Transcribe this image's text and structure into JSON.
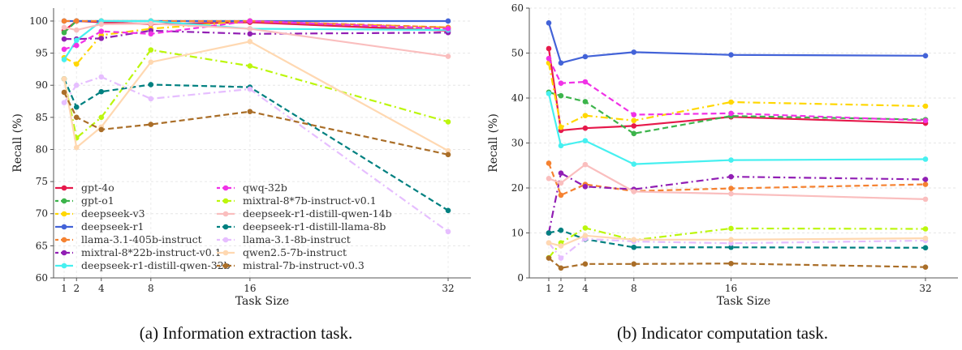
{
  "chart_data": [
    {
      "type": "line",
      "caption": "(a) Information extraction task.",
      "xlabel": "Task Size",
      "ylabel": "Recall (%)",
      "x": [
        1,
        2,
        4,
        8,
        16,
        32
      ],
      "xticks": [
        "1",
        "2",
        "4",
        "8",
        "16",
        "32"
      ],
      "ylim": [
        60,
        100.5
      ],
      "yticks": [
        60,
        65,
        70,
        75,
        80,
        85,
        90,
        95,
        100
      ],
      "grid": true,
      "legend_placement": "lower-left",
      "series": [
        {
          "name": "gpt-4o",
          "color": "#e6194b",
          "style": "solid",
          "values": [
            98.5,
            100,
            99.8,
            99.5,
            99.8,
            98.5
          ]
        },
        {
          "name": "gpt-o1",
          "color": "#3cb44b",
          "style": "dashed",
          "values": [
            98.2,
            100,
            100,
            100,
            100,
            98.8
          ]
        },
        {
          "name": "deepseek-v3",
          "color": "#ffd700",
          "style": "dashdot",
          "values": [
            94.3,
            93.3,
            97.8,
            98.8,
            100,
            99.0
          ]
        },
        {
          "name": "deepseek-r1",
          "color": "#4363d8",
          "style": "solid",
          "values": [
            100,
            100,
            100,
            100,
            100,
            100
          ]
        },
        {
          "name": "llama-3.1-405b-instruct",
          "color": "#f58231",
          "style": "dashed",
          "values": [
            100,
            100,
            100,
            100,
            100,
            99.0
          ]
        },
        {
          "name": "mixtral-8*22b-instruct-v0.1",
          "color": "#911eb4",
          "style": "dashdot",
          "values": [
            97.2,
            97.2,
            97.3,
            98.5,
            98.0,
            98.2
          ]
        },
        {
          "name": "deepseek-r1-distill-qwen-32b",
          "color": "#46f0f0",
          "style": "solid",
          "values": [
            94.0,
            97.0,
            100,
            100,
            98.8,
            98.6
          ]
        },
        {
          "name": "qwq-32b",
          "color": "#f032e6",
          "style": "dashed",
          "values": [
            95.6,
            96.2,
            98.4,
            98.0,
            100,
            98.8
          ]
        },
        {
          "name": "mixtral-8*7b-instruct-v0.1",
          "color": "#bcf60c",
          "style": "dashdot",
          "values": [
            91.0,
            81.8,
            85.0,
            95.5,
            93.0,
            84.3
          ]
        },
        {
          "name": "deepseek-r1-distill-qwen-14b",
          "color": "#fabebe",
          "style": "solid",
          "values": [
            99.0,
            98.6,
            99.5,
            99.6,
            98.8,
            94.5
          ]
        },
        {
          "name": "deepseek-r1-distill-llama-8b",
          "color": "#008080",
          "style": "dashed",
          "values": [
            91.0,
            86.6,
            89.0,
            90.1,
            89.7,
            70.5
          ]
        },
        {
          "name": "llama-3.1-8b-instruct",
          "color": "#e6beff",
          "style": "dashdot",
          "values": [
            87.3,
            90.0,
            91.3,
            87.9,
            89.4,
            67.2
          ]
        },
        {
          "name": "qwen2.5-7b-instruct",
          "color": "#ffd8b1",
          "style": "solid",
          "values": [
            91.0,
            80.3,
            83.5,
            93.6,
            96.8,
            79.8
          ]
        },
        {
          "name": "mistral-7b-instruct-v0.3",
          "color": "#aa6e28",
          "style": "dashed",
          "values": [
            88.9,
            85.0,
            83.1,
            83.9,
            85.9,
            79.2
          ]
        }
      ]
    },
    {
      "type": "line",
      "caption": "(b) Indicator computation task.",
      "xlabel": "Task Size",
      "ylabel": "Recall (%)",
      "x": [
        1,
        2,
        4,
        8,
        16,
        32
      ],
      "xticks": [
        "1",
        "2",
        "4",
        "8",
        "16",
        "32"
      ],
      "ylim": [
        0,
        60
      ],
      "yticks": [
        0,
        10,
        20,
        30,
        40,
        50,
        60
      ],
      "grid": true,
      "series": [
        {
          "name": "gpt-4o",
          "color": "#e6194b",
          "style": "solid",
          "values": [
            51.0,
            32.8,
            33.3,
            33.8,
            35.8,
            34.4
          ]
        },
        {
          "name": "gpt-o1",
          "color": "#3cb44b",
          "style": "dashed",
          "values": [
            41.3,
            40.5,
            39.2,
            32.1,
            36.0,
            35.2
          ]
        },
        {
          "name": "deepseek-v3",
          "color": "#ffd700",
          "style": "dashdot",
          "values": [
            47.8,
            33.5,
            36.1,
            35.0,
            39.1,
            38.2
          ]
        },
        {
          "name": "deepseek-r1",
          "color": "#4363d8",
          "style": "solid",
          "values": [
            56.7,
            47.8,
            49.2,
            50.2,
            49.6,
            49.4
          ]
        },
        {
          "name": "llama-3.1-405b-instruct",
          "color": "#f58231",
          "style": "dashed",
          "values": [
            25.5,
            18.4,
            20.8,
            19.3,
            19.9,
            20.8
          ]
        },
        {
          "name": "mixtral-8*22b-instruct-v0.1",
          "color": "#911eb4",
          "style": "dashdot",
          "values": [
            10.0,
            23.3,
            20.3,
            19.7,
            22.5,
            21.9
          ]
        },
        {
          "name": "deepseek-r1-distill-qwen-32b",
          "color": "#46f0f0",
          "style": "solid",
          "values": [
            41.0,
            29.4,
            30.5,
            25.3,
            26.2,
            26.4
          ]
        },
        {
          "name": "qwq-32b",
          "color": "#f032e6",
          "style": "dashed",
          "values": [
            48.8,
            43.3,
            43.6,
            36.3,
            36.6,
            35.0
          ]
        },
        {
          "name": "mixtral-8*7b-instruct-v0.1",
          "color": "#bcf60c",
          "style": "dashdot",
          "values": [
            4.5,
            7.8,
            11.1,
            8.4,
            11.0,
            10.9
          ]
        },
        {
          "name": "deepseek-r1-distill-qwen-14b",
          "color": "#fabebe",
          "style": "solid",
          "values": [
            22.1,
            21.1,
            25.2,
            19.2,
            18.7,
            17.5
          ]
        },
        {
          "name": "deepseek-r1-distill-llama-8b",
          "color": "#008080",
          "style": "dashed",
          "values": [
            10.0,
            10.6,
            8.6,
            6.8,
            6.8,
            6.7
          ]
        },
        {
          "name": "llama-3.1-8b-instruct",
          "color": "#e6beff",
          "style": "dashdot",
          "values": [
            7.8,
            4.4,
            8.7,
            8.1,
            7.7,
            8.3
          ]
        },
        {
          "name": "qwen2.5-7b-instruct",
          "color": "#ffd8b1",
          "style": "solid",
          "values": [
            7.8,
            7.1,
            9.4,
            8.5,
            8.5,
            8.8
          ]
        },
        {
          "name": "mistral-7b-instruct-v0.3",
          "color": "#aa6e28",
          "style": "dashed",
          "values": [
            4.4,
            2.2,
            3.1,
            3.1,
            3.2,
            2.4
          ]
        }
      ]
    }
  ]
}
